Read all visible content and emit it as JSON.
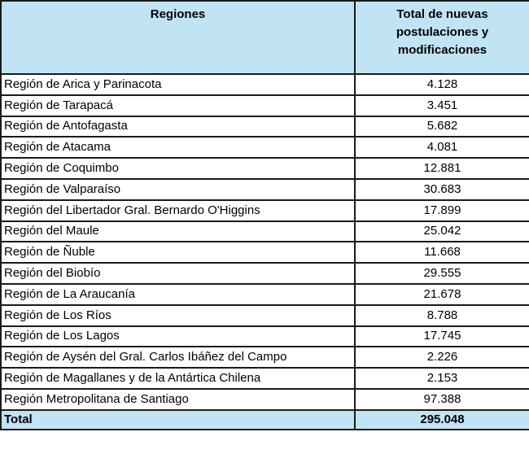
{
  "table": {
    "header": [
      "Regiones",
      "Total de nuevas postulaciones y modificaciones"
    ],
    "rows": [
      [
        "Región de Arica y Parinacota",
        "4.128"
      ],
      [
        "Región de Tarapacá",
        "3.451"
      ],
      [
        "Región de Antofagasta",
        "5.682"
      ],
      [
        "Región de Atacama",
        "4.081"
      ],
      [
        "Región de Coquimbo",
        "12.881"
      ],
      [
        "Región de Valparaíso",
        "30.683"
      ],
      [
        "Región del Libertador Gral. Bernardo O'Higgins",
        "17.899"
      ],
      [
        "Región del Maule",
        "25.042"
      ],
      [
        "Región de Ñuble",
        "11.668"
      ],
      [
        "Región del Biobío",
        "29.555"
      ],
      [
        "Región de La Araucanía",
        "21.678"
      ],
      [
        "Región de Los Ríos",
        "8.788"
      ],
      [
        "Región de Los Lagos",
        "17.745"
      ],
      [
        "Región de Aysén del Gral. Carlos Ibáñez del Campo",
        "2.226"
      ],
      [
        "Región de Magallanes y de la Antártica Chilena",
        "2.153"
      ],
      [
        "Región Metropolitana de Santiago",
        "97.388"
      ]
    ],
    "total": [
      "Total",
      "295.048"
    ]
  }
}
